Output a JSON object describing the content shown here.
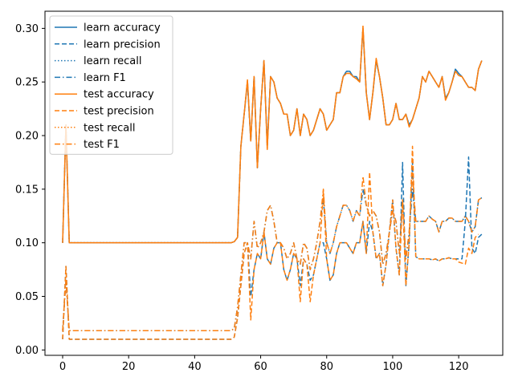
{
  "chart_data": {
    "type": "line",
    "title": "",
    "xlabel": "",
    "ylabel": "",
    "xlim": [
      -5.35,
      133.35
    ],
    "ylim": [
      -0.005,
      0.316
    ],
    "x_ticks": [
      0,
      20,
      40,
      60,
      80,
      100,
      120
    ],
    "y_ticks": [
      0.0,
      0.05,
      0.1,
      0.15,
      0.2,
      0.25,
      0.3
    ],
    "x_tick_labels": [
      "0",
      "20",
      "40",
      "60",
      "80",
      "100",
      "120"
    ],
    "y_tick_labels": [
      "0.00",
      "0.05",
      "0.10",
      "0.15",
      "0.20",
      "0.25",
      "0.30"
    ],
    "grid": false,
    "legend_position": "top-left",
    "colors": {
      "learn": "#1f77b4",
      "test": "#ff7f0e"
    },
    "series": [
      {
        "name": "learn accuracy",
        "color": "#1f77b4",
        "dash": "solid",
        "values": [
          0.1,
          0.21,
          0.1,
          0.1,
          0.1,
          0.1,
          0.1,
          0.1,
          0.1,
          0.1,
          0.1,
          0.1,
          0.1,
          0.1,
          0.1,
          0.1,
          0.1,
          0.1,
          0.1,
          0.1,
          0.1,
          0.1,
          0.1,
          0.1,
          0.1,
          0.1,
          0.1,
          0.1,
          0.1,
          0.1,
          0.1,
          0.1,
          0.1,
          0.1,
          0.1,
          0.1,
          0.1,
          0.1,
          0.1,
          0.1,
          0.1,
          0.1,
          0.1,
          0.1,
          0.1,
          0.1,
          0.1,
          0.1,
          0.1,
          0.1,
          0.1,
          0.1,
          0.101,
          0.105,
          0.19,
          0.22,
          0.25,
          0.195,
          0.255,
          0.17,
          0.225,
          0.27,
          0.19,
          0.255,
          0.25,
          0.235,
          0.23,
          0.22,
          0.22,
          0.2,
          0.205,
          0.225,
          0.2,
          0.22,
          0.215,
          0.2,
          0.205,
          0.215,
          0.225,
          0.22,
          0.205,
          0.21,
          0.215,
          0.24,
          0.24,
          0.255,
          0.26,
          0.26,
          0.255,
          0.255,
          0.25,
          0.3,
          0.24,
          0.215,
          0.24,
          0.27,
          0.255,
          0.235,
          0.21,
          0.21,
          0.215,
          0.23,
          0.215,
          0.215,
          0.22,
          0.21,
          0.215,
          0.225,
          0.235,
          0.255,
          0.25,
          0.26,
          0.255,
          0.25,
          0.245,
          0.255,
          0.235,
          0.24,
          0.25,
          0.262,
          0.258,
          0.255,
          0.25,
          0.245,
          0.245,
          0.242,
          0.262,
          0.27
        ]
      },
      {
        "name": "learn precision",
        "color": "#1f77b4",
        "dash": "dashed",
        "values": [
          0.01,
          0.078,
          0.01,
          0.01,
          0.01,
          0.01,
          0.01,
          0.01,
          0.01,
          0.01,
          0.01,
          0.01,
          0.01,
          0.01,
          0.01,
          0.01,
          0.01,
          0.01,
          0.01,
          0.01,
          0.01,
          0.01,
          0.01,
          0.01,
          0.01,
          0.01,
          0.01,
          0.01,
          0.01,
          0.01,
          0.01,
          0.01,
          0.01,
          0.01,
          0.01,
          0.01,
          0.01,
          0.01,
          0.01,
          0.01,
          0.01,
          0.01,
          0.01,
          0.01,
          0.01,
          0.01,
          0.01,
          0.01,
          0.01,
          0.01,
          0.01,
          0.01,
          0.012,
          0.03,
          0.06,
          0.09,
          0.1,
          0.05,
          0.075,
          0.09,
          0.085,
          0.11,
          0.085,
          0.08,
          0.095,
          0.1,
          0.1,
          0.075,
          0.065,
          0.075,
          0.09,
          0.085,
          0.06,
          0.085,
          0.08,
          0.065,
          0.07,
          0.085,
          0.1,
          0.1,
          0.085,
          0.065,
          0.07,
          0.09,
          0.1,
          0.1,
          0.1,
          0.095,
          0.09,
          0.1,
          0.1,
          0.12,
          0.09,
          0.12,
          0.11,
          0.085,
          0.09,
          0.06,
          0.08,
          0.11,
          0.14,
          0.095,
          0.07,
          0.175,
          0.06,
          0.1,
          0.175,
          0.087,
          0.085,
          0.085,
          0.085,
          0.085,
          0.084,
          0.085,
          0.083,
          0.085,
          0.085,
          0.086,
          0.085,
          0.085,
          0.085,
          0.085,
          0.12,
          0.18,
          0.095,
          0.09,
          0.105,
          0.108
        ]
      },
      {
        "name": "learn recall",
        "color": "#1f77b4",
        "dash": "dotted",
        "values": [
          0.1,
          0.21,
          0.1,
          0.1,
          0.1,
          0.1,
          0.1,
          0.1,
          0.1,
          0.1,
          0.1,
          0.1,
          0.1,
          0.1,
          0.1,
          0.1,
          0.1,
          0.1,
          0.1,
          0.1,
          0.1,
          0.1,
          0.1,
          0.1,
          0.1,
          0.1,
          0.1,
          0.1,
          0.1,
          0.1,
          0.1,
          0.1,
          0.1,
          0.1,
          0.1,
          0.1,
          0.1,
          0.1,
          0.1,
          0.1,
          0.1,
          0.1,
          0.1,
          0.1,
          0.1,
          0.1,
          0.1,
          0.1,
          0.1,
          0.1,
          0.1,
          0.1,
          0.101,
          0.105,
          0.19,
          0.22,
          0.25,
          0.195,
          0.255,
          0.17,
          0.225,
          0.27,
          0.19,
          0.255,
          0.25,
          0.235,
          0.23,
          0.22,
          0.22,
          0.2,
          0.205,
          0.225,
          0.2,
          0.22,
          0.215,
          0.2,
          0.205,
          0.215,
          0.225,
          0.22,
          0.205,
          0.21,
          0.215,
          0.24,
          0.24,
          0.255,
          0.26,
          0.26,
          0.255,
          0.255,
          0.25,
          0.3,
          0.24,
          0.215,
          0.24,
          0.27,
          0.255,
          0.235,
          0.21,
          0.21,
          0.215,
          0.23,
          0.215,
          0.215,
          0.22,
          0.21,
          0.215,
          0.225,
          0.235,
          0.255,
          0.25,
          0.26,
          0.255,
          0.25,
          0.245,
          0.255,
          0.235,
          0.24,
          0.25,
          0.262,
          0.258,
          0.255,
          0.25,
          0.245,
          0.245,
          0.242,
          0.262,
          0.27
        ]
      },
      {
        "name": "learn F1",
        "color": "#1f77b4",
        "dash": "dashdot",
        "values": [
          0.018,
          0.065,
          0.018,
          0.018,
          0.018,
          0.018,
          0.018,
          0.018,
          0.018,
          0.018,
          0.018,
          0.018,
          0.018,
          0.018,
          0.018,
          0.018,
          0.018,
          0.018,
          0.018,
          0.018,
          0.018,
          0.018,
          0.018,
          0.018,
          0.018,
          0.018,
          0.018,
          0.018,
          0.018,
          0.018,
          0.018,
          0.018,
          0.018,
          0.018,
          0.018,
          0.018,
          0.018,
          0.018,
          0.018,
          0.018,
          0.018,
          0.018,
          0.018,
          0.018,
          0.018,
          0.018,
          0.018,
          0.018,
          0.018,
          0.018,
          0.018,
          0.018,
          0.02,
          0.04,
          0.07,
          0.1,
          0.1,
          0.085,
          0.12,
          0.095,
          0.1,
          0.11,
          0.13,
          0.135,
          0.12,
          0.1,
          0.1,
          0.095,
          0.085,
          0.09,
          0.1,
          0.085,
          0.08,
          0.1,
          0.095,
          0.075,
          0.085,
          0.1,
          0.12,
          0.14,
          0.1,
          0.09,
          0.1,
          0.115,
          0.125,
          0.135,
          0.135,
          0.13,
          0.12,
          0.13,
          0.125,
          0.15,
          0.135,
          0.125,
          0.13,
          0.125,
          0.11,
          0.08,
          0.09,
          0.11,
          0.13,
          0.12,
          0.09,
          0.14,
          0.085,
          0.11,
          0.15,
          0.12,
          0.12,
          0.12,
          0.12,
          0.125,
          0.122,
          0.12,
          0.11,
          0.12,
          0.12,
          0.123,
          0.123,
          0.12,
          0.12,
          0.12,
          0.125,
          0.12,
          0.11,
          0.115,
          0.14,
          0.142
        ]
      },
      {
        "name": "test accuracy",
        "color": "#ff7f0e",
        "dash": "solid",
        "values": [
          0.1,
          0.21,
          0.1,
          0.1,
          0.1,
          0.1,
          0.1,
          0.1,
          0.1,
          0.1,
          0.1,
          0.1,
          0.1,
          0.1,
          0.1,
          0.1,
          0.1,
          0.1,
          0.1,
          0.1,
          0.1,
          0.1,
          0.1,
          0.1,
          0.1,
          0.1,
          0.1,
          0.1,
          0.1,
          0.1,
          0.1,
          0.1,
          0.1,
          0.1,
          0.1,
          0.1,
          0.1,
          0.1,
          0.1,
          0.1,
          0.1,
          0.1,
          0.1,
          0.1,
          0.1,
          0.1,
          0.1,
          0.1,
          0.1,
          0.1,
          0.1,
          0.1,
          0.101,
          0.105,
          0.19,
          0.22,
          0.252,
          0.195,
          0.255,
          0.17,
          0.225,
          0.27,
          0.187,
          0.255,
          0.25,
          0.235,
          0.23,
          0.22,
          0.22,
          0.2,
          0.205,
          0.225,
          0.2,
          0.22,
          0.215,
          0.2,
          0.205,
          0.215,
          0.225,
          0.22,
          0.205,
          0.21,
          0.215,
          0.24,
          0.24,
          0.255,
          0.258,
          0.258,
          0.255,
          0.253,
          0.25,
          0.302,
          0.24,
          0.215,
          0.24,
          0.272,
          0.255,
          0.235,
          0.21,
          0.21,
          0.215,
          0.23,
          0.215,
          0.215,
          0.22,
          0.208,
          0.215,
          0.225,
          0.235,
          0.255,
          0.25,
          0.26,
          0.255,
          0.25,
          0.245,
          0.255,
          0.233,
          0.24,
          0.25,
          0.26,
          0.256,
          0.255,
          0.25,
          0.245,
          0.245,
          0.242,
          0.262,
          0.27
        ]
      },
      {
        "name": "test precision",
        "color": "#ff7f0e",
        "dash": "dashed",
        "values": [
          0.01,
          0.078,
          0.01,
          0.01,
          0.01,
          0.01,
          0.01,
          0.01,
          0.01,
          0.01,
          0.01,
          0.01,
          0.01,
          0.01,
          0.01,
          0.01,
          0.01,
          0.01,
          0.01,
          0.01,
          0.01,
          0.01,
          0.01,
          0.01,
          0.01,
          0.01,
          0.01,
          0.01,
          0.01,
          0.01,
          0.01,
          0.01,
          0.01,
          0.01,
          0.01,
          0.01,
          0.01,
          0.01,
          0.01,
          0.01,
          0.01,
          0.01,
          0.01,
          0.01,
          0.01,
          0.01,
          0.01,
          0.01,
          0.01,
          0.01,
          0.01,
          0.01,
          0.012,
          0.03,
          0.06,
          0.09,
          0.1,
          0.028,
          0.075,
          0.09,
          0.085,
          0.11,
          0.085,
          0.08,
          0.095,
          0.1,
          0.1,
          0.075,
          0.065,
          0.075,
          0.09,
          0.085,
          0.045,
          0.085,
          0.08,
          0.045,
          0.07,
          0.085,
          0.1,
          0.148,
          0.085,
          0.065,
          0.07,
          0.09,
          0.1,
          0.1,
          0.1,
          0.095,
          0.09,
          0.1,
          0.1,
          0.12,
          0.09,
          0.166,
          0.11,
          0.085,
          0.09,
          0.06,
          0.08,
          0.11,
          0.14,
          0.095,
          0.07,
          0.14,
          0.06,
          0.1,
          0.19,
          0.087,
          0.085,
          0.085,
          0.085,
          0.085,
          0.084,
          0.085,
          0.083,
          0.085,
          0.085,
          0.086,
          0.085,
          0.085,
          0.082,
          0.081,
          0.08,
          0.095,
          0.09,
          0.105,
          0.108
        ]
      },
      {
        "name": "test recall",
        "color": "#ff7f0e",
        "dash": "dotted",
        "values": [
          0.1,
          0.21,
          0.1,
          0.1,
          0.1,
          0.1,
          0.1,
          0.1,
          0.1,
          0.1,
          0.1,
          0.1,
          0.1,
          0.1,
          0.1,
          0.1,
          0.1,
          0.1,
          0.1,
          0.1,
          0.1,
          0.1,
          0.1,
          0.1,
          0.1,
          0.1,
          0.1,
          0.1,
          0.1,
          0.1,
          0.1,
          0.1,
          0.1,
          0.1,
          0.1,
          0.1,
          0.1,
          0.1,
          0.1,
          0.1,
          0.1,
          0.1,
          0.1,
          0.1,
          0.1,
          0.1,
          0.1,
          0.1,
          0.1,
          0.1,
          0.1,
          0.1,
          0.101,
          0.105,
          0.19,
          0.22,
          0.252,
          0.195,
          0.255,
          0.17,
          0.225,
          0.27,
          0.187,
          0.255,
          0.25,
          0.235,
          0.23,
          0.22,
          0.22,
          0.2,
          0.205,
          0.225,
          0.2,
          0.22,
          0.215,
          0.2,
          0.205,
          0.215,
          0.225,
          0.22,
          0.205,
          0.21,
          0.215,
          0.24,
          0.24,
          0.255,
          0.258,
          0.258,
          0.255,
          0.253,
          0.25,
          0.302,
          0.24,
          0.215,
          0.24,
          0.272,
          0.255,
          0.235,
          0.21,
          0.21,
          0.215,
          0.23,
          0.215,
          0.215,
          0.22,
          0.208,
          0.215,
          0.225,
          0.235,
          0.255,
          0.25,
          0.26,
          0.255,
          0.25,
          0.245,
          0.255,
          0.233,
          0.24,
          0.25,
          0.26,
          0.256,
          0.255,
          0.25,
          0.245,
          0.245,
          0.242,
          0.262,
          0.27
        ]
      },
      {
        "name": "test F1",
        "color": "#ff7f0e",
        "dash": "dashdot",
        "values": [
          0.018,
          0.065,
          0.018,
          0.018,
          0.018,
          0.018,
          0.018,
          0.018,
          0.018,
          0.018,
          0.018,
          0.018,
          0.018,
          0.018,
          0.018,
          0.018,
          0.018,
          0.018,
          0.018,
          0.018,
          0.018,
          0.018,
          0.018,
          0.018,
          0.018,
          0.018,
          0.018,
          0.018,
          0.018,
          0.018,
          0.018,
          0.018,
          0.018,
          0.018,
          0.018,
          0.018,
          0.018,
          0.018,
          0.018,
          0.018,
          0.018,
          0.018,
          0.018,
          0.018,
          0.018,
          0.018,
          0.018,
          0.018,
          0.018,
          0.018,
          0.018,
          0.018,
          0.02,
          0.04,
          0.07,
          0.1,
          0.1,
          0.085,
          0.12,
          0.095,
          0.1,
          0.11,
          0.13,
          0.135,
          0.12,
          0.1,
          0.1,
          0.095,
          0.085,
          0.09,
          0.1,
          0.085,
          0.08,
          0.1,
          0.095,
          0.075,
          0.085,
          0.1,
          0.12,
          0.15,
          0.1,
          0.09,
          0.1,
          0.115,
          0.125,
          0.135,
          0.135,
          0.13,
          0.12,
          0.13,
          0.125,
          0.162,
          0.135,
          0.125,
          0.13,
          0.125,
          0.11,
          0.08,
          0.09,
          0.11,
          0.13,
          0.12,
          0.09,
          0.14,
          0.085,
          0.11,
          0.165,
          0.12,
          0.12,
          0.12,
          0.12,
          0.125,
          0.122,
          0.12,
          0.11,
          0.12,
          0.12,
          0.123,
          0.123,
          0.12,
          0.12,
          0.12,
          0.125,
          0.12,
          0.11,
          0.115,
          0.14,
          0.142
        ]
      }
    ]
  }
}
